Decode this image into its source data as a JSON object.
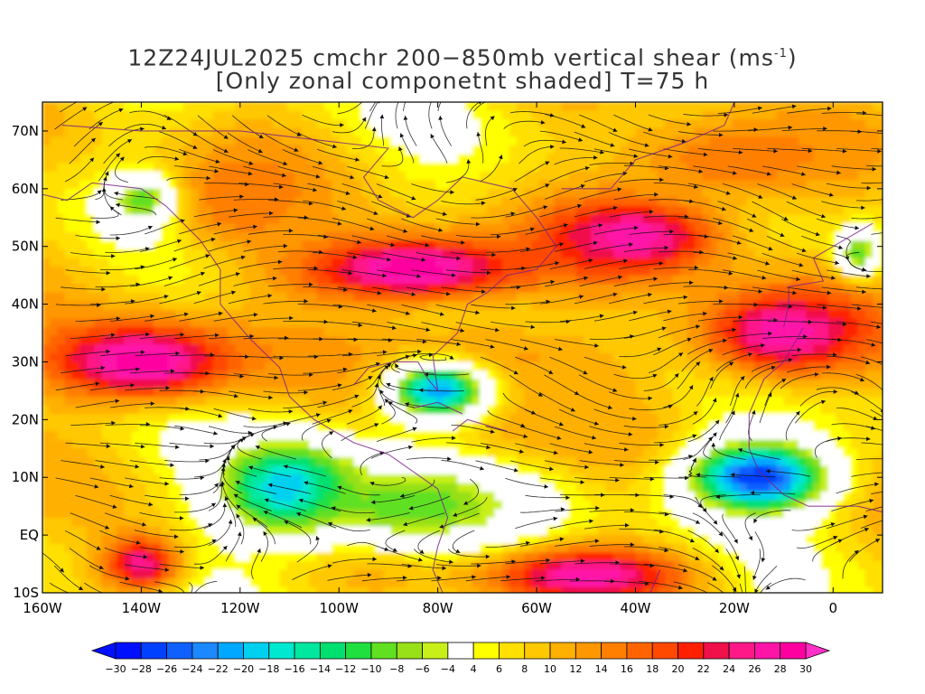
{
  "title": {
    "line1_prefix": "12Z24JUL2025 cmchr 200−850mb vertical shear (ms",
    "line1_sup": "-1",
    "line1_suffix": ")",
    "line2": "[Only zonal componetnt shaded] T=75 h"
  },
  "map": {
    "lat_labels": [
      "70N",
      "60N",
      "50N",
      "40N",
      "30N",
      "20N",
      "10N",
      "EQ",
      "10S"
    ],
    "lat_values": [
      70,
      60,
      50,
      40,
      30,
      20,
      10,
      0,
      -10
    ],
    "lon_labels": [
      "160W",
      "140W",
      "120W",
      "100W",
      "80W",
      "60W",
      "40W",
      "20W",
      "0"
    ],
    "lon_values": [
      -160,
      -140,
      -120,
      -100,
      -80,
      -60,
      -40,
      -20,
      0
    ],
    "lon_range": [
      -160,
      10
    ],
    "lat_range": [
      -10,
      75
    ],
    "field": "zonal vertical shear (shaded) with wind-shear streamlines"
  },
  "colorbar": {
    "labels": [
      "-30",
      "-28",
      "-26",
      "-24",
      "-22",
      "-20",
      "-18",
      "-16",
      "-14",
      "-12",
      "-10",
      "-8",
      "-6",
      "-4",
      "4",
      "6",
      "8",
      "10",
      "12",
      "14",
      "16",
      "18",
      "20",
      "22",
      "24",
      "26",
      "28",
      "30"
    ],
    "colors": [
      "#0010ff",
      "#0040ff",
      "#1060ff",
      "#1c88ff",
      "#00a8ff",
      "#00d0f0",
      "#00e8d0",
      "#00e8a0",
      "#00e070",
      "#20e040",
      "#60e020",
      "#98e018",
      "#c8f018",
      "#ffffff",
      "#ffff00",
      "#ffe000",
      "#ffc800",
      "#ffb000",
      "#ff9800",
      "#ff7f00",
      "#ff6400",
      "#ff4800",
      "#ff2000",
      "#f0104a",
      "#ff1888",
      "#ff14a8",
      "#ff00a0"
    ],
    "under_color": "#0010ff",
    "over_color": "#ff30c8"
  },
  "chart_data": {
    "type": "heatmap",
    "title": "12Z24JUL2025 cmchr 200−850mb vertical shear (ms-1) [Only zonal componetnt shaded] T=75 h",
    "x_ticks": [
      "160W",
      "140W",
      "120W",
      "100W",
      "80W",
      "60W",
      "40W",
      "20W",
      "0"
    ],
    "y_ticks": [
      "70N",
      "60N",
      "50N",
      "40N",
      "30N",
      "20N",
      "10N",
      "EQ",
      "10S"
    ],
    "levels": [
      -30,
      -28,
      -26,
      -24,
      -22,
      -20,
      -18,
      -16,
      -14,
      -12,
      -10,
      -8,
      -6,
      -4,
      4,
      6,
      8,
      10,
      12,
      14,
      16,
      18,
      20,
      22,
      24,
      26,
      28,
      30
    ],
    "blobs": [
      {
        "lon": -140,
        "lat": 30,
        "value": 30,
        "r_lon": 20,
        "r_lat": 7
      },
      {
        "lon": -85,
        "lat": 46,
        "value": 30,
        "r_lon": 24,
        "r_lat": 6
      },
      {
        "lon": -40,
        "lat": 52,
        "value": 28,
        "r_lon": 18,
        "r_lat": 7
      },
      {
        "lon": -10,
        "lat": 35,
        "value": 28,
        "r_lon": 18,
        "r_lat": 8
      },
      {
        "lon": -50,
        "lat": -7,
        "value": 28,
        "r_lon": 20,
        "r_lat": 5
      },
      {
        "lon": -140,
        "lat": -5,
        "value": 26,
        "r_lon": 8,
        "r_lat": 5
      },
      {
        "lon": -20,
        "lat": 65,
        "value": 16,
        "r_lon": 25,
        "r_lat": 8
      },
      {
        "lon": -120,
        "lat": 58,
        "value": 16,
        "r_lon": 15,
        "r_lat": 10
      },
      {
        "lon": -75,
        "lat": 30,
        "value": 14,
        "r_lon": 30,
        "r_lat": 8
      },
      {
        "lon": -60,
        "lat": 20,
        "value": 12,
        "r_lon": 20,
        "r_lat": 8
      },
      {
        "lon": -110,
        "lat": 8,
        "value": -22,
        "r_lon": 14,
        "r_lat": 8
      },
      {
        "lon": -80,
        "lat": 25,
        "value": -22,
        "r_lon": 10,
        "r_lat": 5
      },
      {
        "lon": -15,
        "lat": 10,
        "value": -28,
        "r_lon": 14,
        "r_lat": 6
      },
      {
        "lon": -85,
        "lat": 5,
        "value": -10,
        "r_lon": 22,
        "r_lat": 7
      },
      {
        "lon": -140,
        "lat": 58,
        "value": -10,
        "r_lon": 6,
        "r_lat": 4
      },
      {
        "lon": 5,
        "lat": 49,
        "value": -10,
        "r_lon": 4,
        "r_lat": 4
      }
    ]
  }
}
